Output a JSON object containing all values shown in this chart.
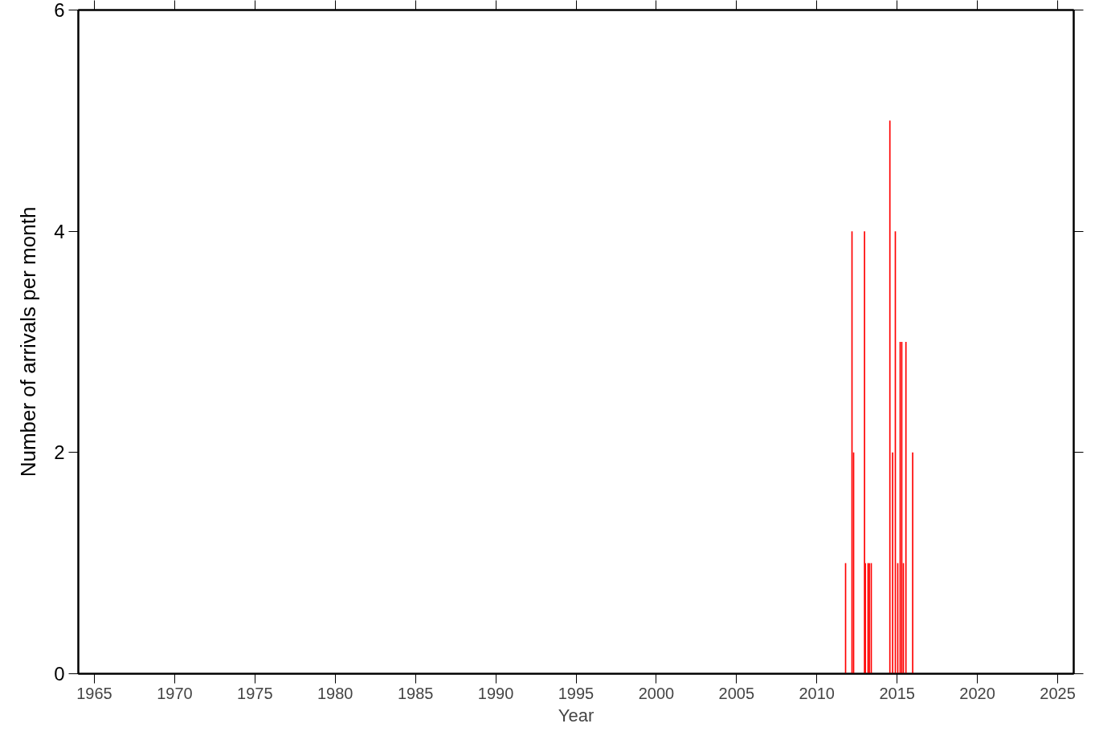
{
  "chart_data": {
    "type": "bar",
    "xlabel": "Year",
    "ylabel": "Number of arrivals per month",
    "x": [
      2011.79,
      2012.19,
      2012.29,
      2012.97,
      2013.02,
      2013.19,
      2013.27,
      2013.39,
      2014.55,
      2014.72,
      2014.89,
      2015.04,
      2015.19,
      2015.29,
      2015.39,
      2015.55,
      2015.97
    ],
    "values": [
      1,
      4,
      2,
      4,
      1,
      1,
      1,
      1,
      5,
      2,
      4,
      1,
      3,
      3,
      1,
      3,
      2
    ],
    "color": "#ff0000",
    "xlim": [
      1964,
      2026
    ],
    "xticks": [
      1965,
      1970,
      1975,
      1980,
      1985,
      1990,
      1995,
      2000,
      2005,
      2010,
      2015,
      2020,
      2025
    ],
    "ylim": [
      0,
      6
    ],
    "yticks": [
      0,
      2,
      4,
      6
    ],
    "grid": false
  }
}
